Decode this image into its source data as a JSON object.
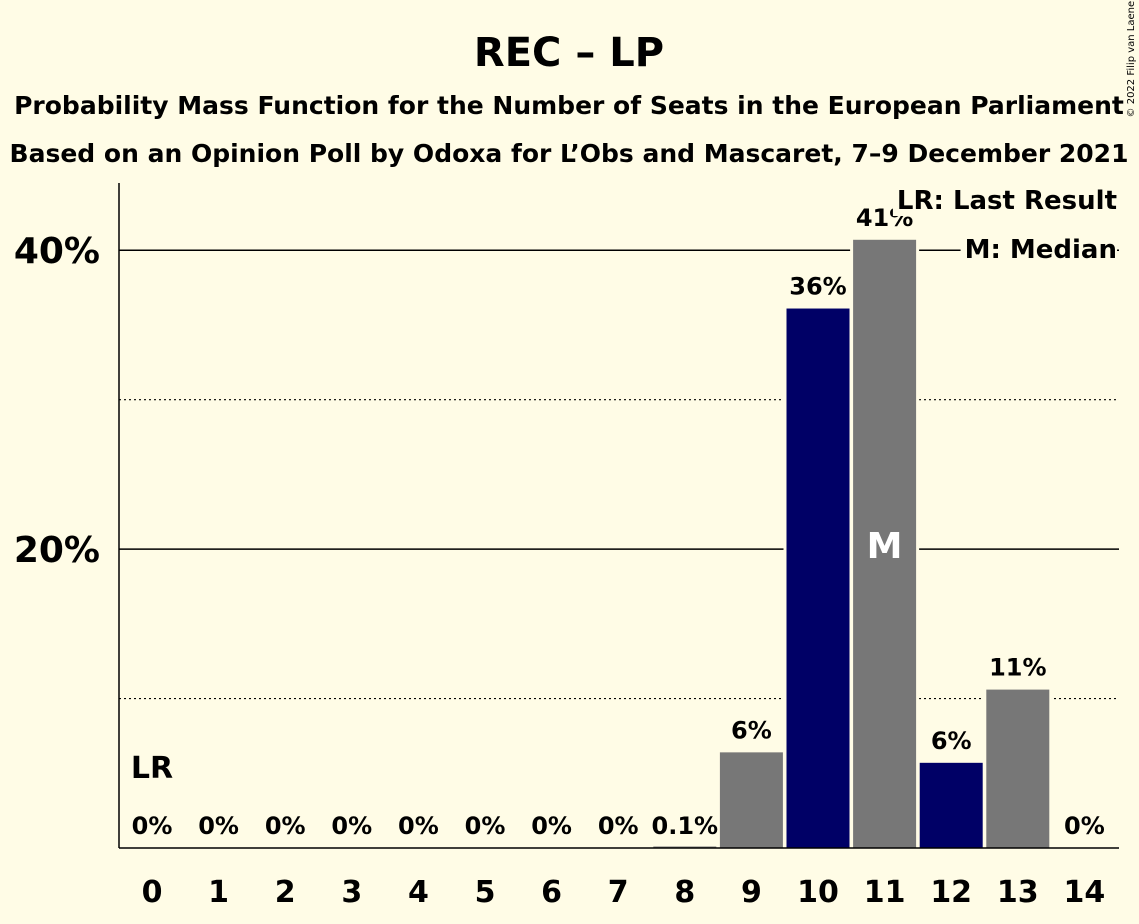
{
  "title": "REC – LP",
  "subtitle1": "Probability Mass Function for the Number of Seats in the European Parliament",
  "subtitle2": "Based on an Opinion Poll by Odoxa for L’Obs and Mascaret, 7–9 December 2021",
  "copyright": "© 2022 Filip van Laenen",
  "legend": {
    "lr": "LR: Last Result",
    "m": "M: Median"
  },
  "colors": {
    "background": "#FFFCE6",
    "primary": "#000066",
    "secondary": "#777777"
  },
  "chart_data": {
    "type": "bar",
    "categories": [
      "0",
      "1",
      "2",
      "3",
      "4",
      "5",
      "6",
      "7",
      "8",
      "9",
      "10",
      "11",
      "12",
      "13",
      "14"
    ],
    "values": [
      0,
      0,
      0,
      0,
      0,
      0,
      0,
      0,
      0.1,
      6.4,
      36.1,
      40.7,
      5.7,
      10.6,
      0
    ],
    "labels": [
      "0%",
      "0%",
      "0%",
      "0%",
      "0%",
      "0%",
      "0%",
      "0%",
      "0.1%",
      "6%",
      "36%",
      "41%",
      "6%",
      "11%",
      "0%"
    ],
    "bar_colors": [
      "primary",
      "primary",
      "primary",
      "primary",
      "primary",
      "primary",
      "primary",
      "primary",
      "secondary",
      "secondary",
      "primary",
      "secondary",
      "primary",
      "secondary",
      "primary"
    ],
    "ylim": [
      0,
      44.5
    ],
    "yticks": [
      {
        "value": 20,
        "label": "20%"
      },
      {
        "value": 40,
        "label": "40%"
      }
    ],
    "minor_gridlines": [
      10,
      30
    ],
    "last_result": {
      "index": 0,
      "text": "LR"
    },
    "median": {
      "index": 11,
      "text": "M"
    }
  }
}
